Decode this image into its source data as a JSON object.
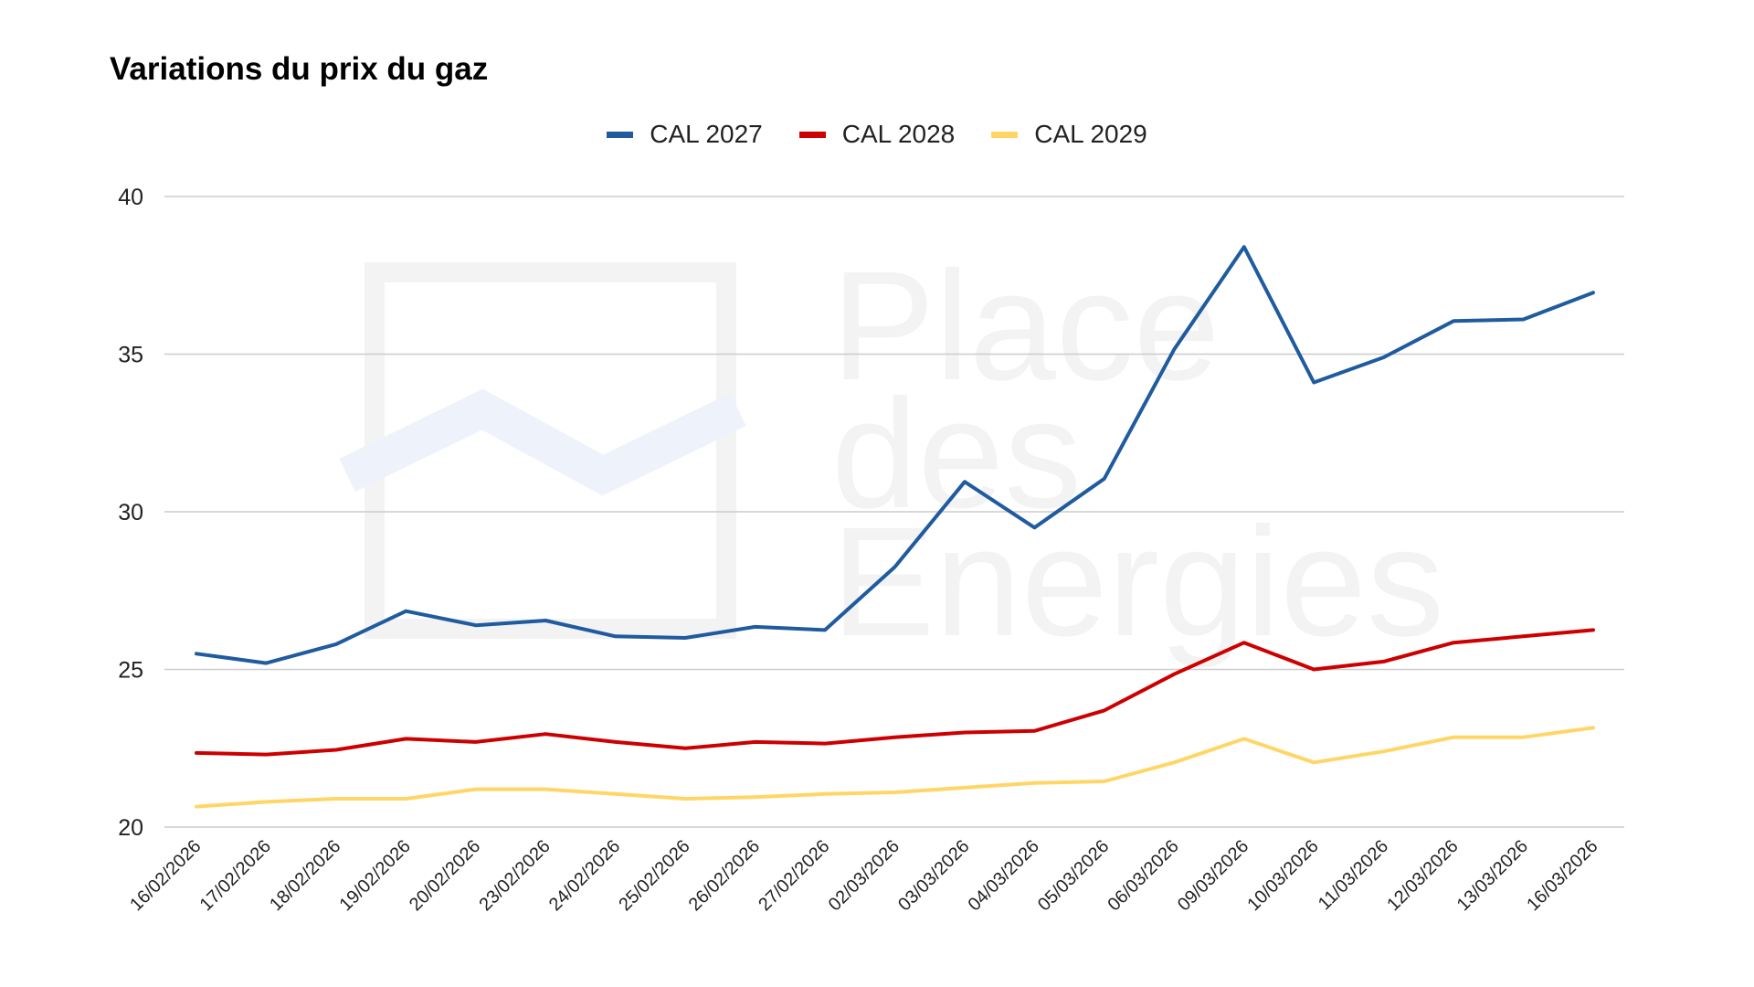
{
  "watermark": {
    "text_lines": [
      "Place",
      "des",
      "Energies"
    ]
  },
  "chart_data": {
    "type": "line",
    "title": "Variations du prix du gaz",
    "xlabel": "",
    "ylabel": "",
    "ylim": [
      20,
      40
    ],
    "yticks": [
      20,
      25,
      30,
      35,
      40
    ],
    "grid": true,
    "legend_position": "top",
    "categories": [
      "16/02/2026",
      "17/02/2026",
      "18/02/2026",
      "19/02/2026",
      "20/02/2026",
      "23/02/2026",
      "24/02/2026",
      "25/02/2026",
      "26/02/2026",
      "27/02/2026",
      "02/03/2026",
      "03/03/2026",
      "04/03/2026",
      "05/03/2026",
      "06/03/2026",
      "09/03/2026",
      "10/03/2026",
      "11/03/2026",
      "12/03/2026",
      "13/03/2026",
      "16/03/2026"
    ],
    "series": [
      {
        "name": "CAL 2027",
        "color": "#1f5b9e",
        "values": [
          25.5,
          25.2,
          25.8,
          26.85,
          26.4,
          26.55,
          26.05,
          26.0,
          26.35,
          26.25,
          28.25,
          30.95,
          29.5,
          31.05,
          35.15,
          38.4,
          34.1,
          34.9,
          36.05,
          36.1,
          36.95
        ]
      },
      {
        "name": "CAL 2028",
        "color": "#cc0000",
        "values": [
          22.35,
          22.3,
          22.45,
          22.8,
          22.7,
          22.95,
          22.7,
          22.5,
          22.7,
          22.65,
          22.85,
          23.0,
          23.05,
          23.7,
          24.85,
          25.85,
          25.0,
          25.25,
          25.85,
          26.05,
          26.25
        ]
      },
      {
        "name": "CAL 2029",
        "color": "#ffd666",
        "values": [
          20.65,
          20.8,
          20.9,
          20.9,
          21.2,
          21.2,
          21.05,
          20.9,
          20.95,
          21.05,
          21.1,
          21.25,
          21.4,
          21.45,
          22.05,
          22.8,
          22.05,
          22.4,
          22.85,
          22.85,
          23.15
        ]
      }
    ]
  }
}
